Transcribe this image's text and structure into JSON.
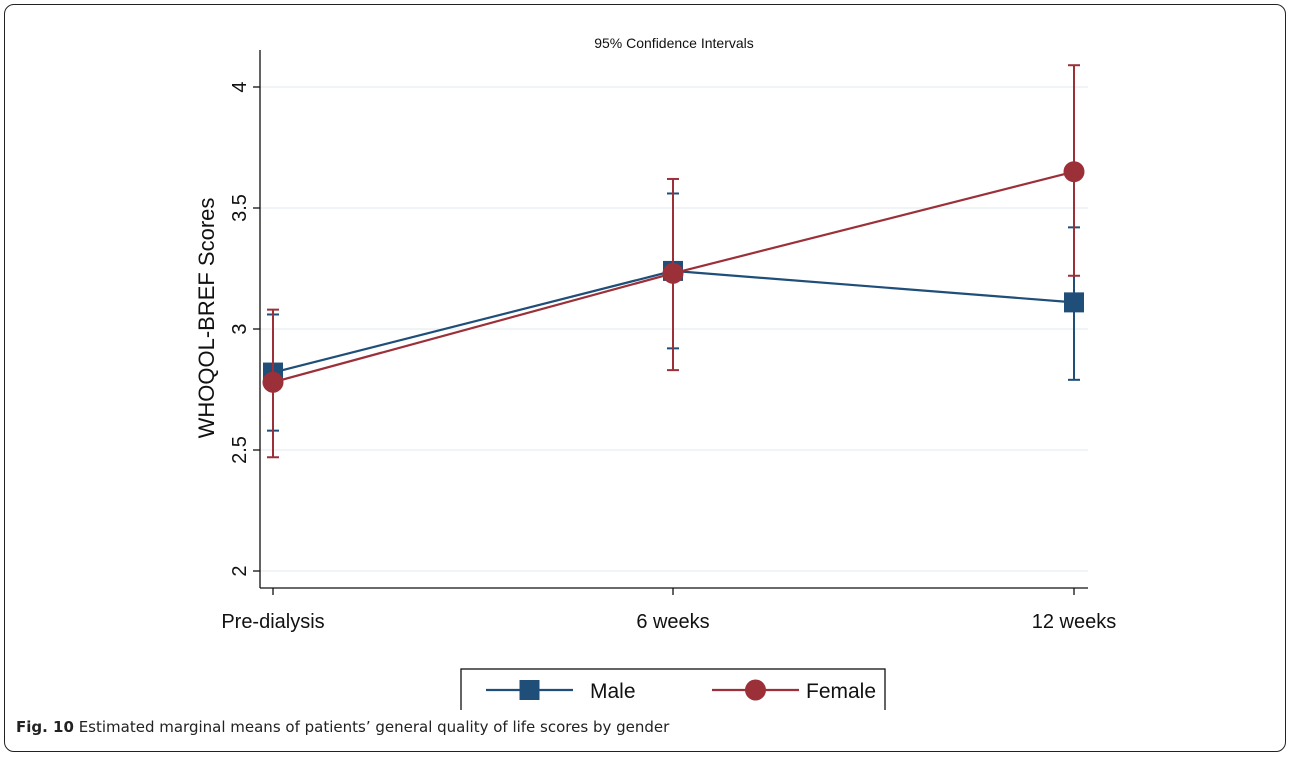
{
  "caption": {
    "label": "Fig. 10",
    "text": "Estimated marginal means of patients’ general quality of life scores by gender"
  },
  "chart_data": {
    "type": "line",
    "title": "95% Confidence Intervals",
    "xlabel": "",
    "ylabel": "WHOQOL-BREF Scores",
    "categories": [
      "Pre-dialysis",
      "6 weeks",
      "12 weeks"
    ],
    "ylim": [
      2,
      4
    ],
    "yticks": [
      2,
      2.5,
      3,
      3.5,
      4
    ],
    "ytick_labels": [
      "2",
      "2.5",
      "3",
      "3.5",
      "4"
    ],
    "grid": true,
    "legend": "bottom",
    "series": [
      {
        "name": "Male",
        "color": "#1f4e79",
        "marker": "square",
        "values": [
          2.82,
          3.24,
          3.11
        ],
        "ci_low": [
          2.58,
          2.92,
          2.79
        ],
        "ci_high": [
          3.06,
          3.56,
          3.42
        ]
      },
      {
        "name": "Female",
        "color": "#9b3039",
        "marker": "circle",
        "values": [
          2.78,
          3.23,
          3.65
        ],
        "ci_low": [
          2.47,
          2.83,
          3.22
        ],
        "ci_high": [
          3.08,
          3.62,
          4.09
        ]
      }
    ]
  }
}
